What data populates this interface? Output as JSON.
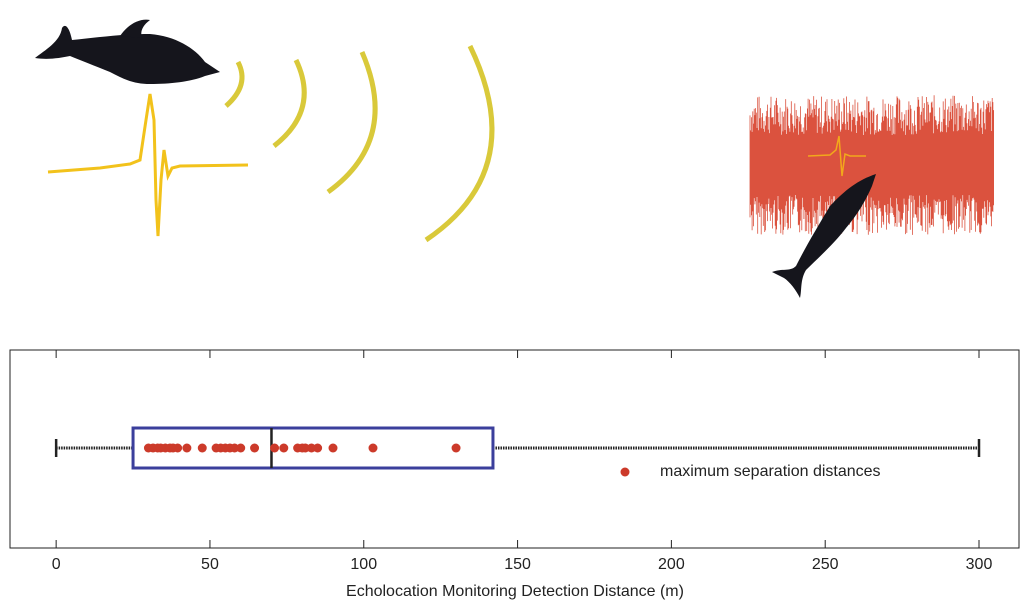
{
  "chart_data": {
    "type": "box",
    "xlabel": "Echolocation Monitoring Detection Distance (m)",
    "xlim": [
      -15,
      313
    ],
    "xticks": [
      0,
      50,
      100,
      150,
      200,
      250,
      300
    ],
    "box": {
      "whisker_low": 0,
      "q1": 25,
      "median": 70,
      "q3": 142,
      "whisker_high": 300,
      "color": "#3b3f9c"
    },
    "series": [
      {
        "name": "maximum separation distances",
        "color": "#cc3a2a",
        "values": [
          30,
          31.5,
          33,
          34,
          35.5,
          37,
          38,
          39.5,
          42.5,
          47.5,
          52,
          53.5,
          55,
          56.5,
          58,
          60,
          64.5,
          71,
          74,
          78.5,
          80,
          81,
          83,
          85,
          90,
          103,
          130
        ]
      }
    ],
    "legend": "right"
  }
}
